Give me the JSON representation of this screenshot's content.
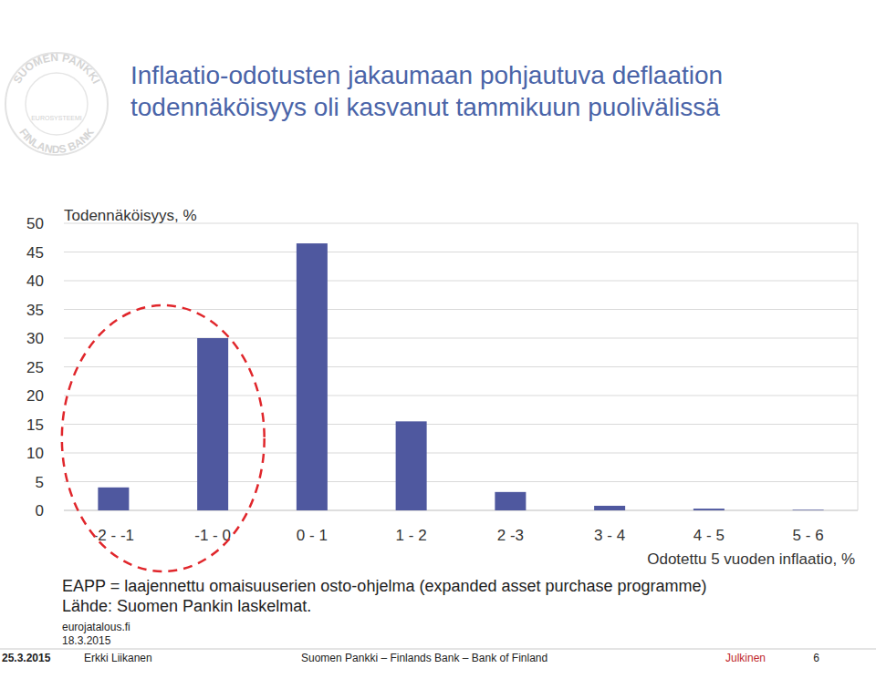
{
  "chart_data": {
    "type": "bar",
    "title": [
      "Inflaatio-odotusten jakaumaan pohjautuva deflaation",
      "todennäköisyys oli kasvanut tammikuun puolivälissä"
    ],
    "y_label": "Todennäköisyys, %",
    "x_label": "Odotettu  5 vuoden inflaatio, %",
    "categories": [
      "-2 - -1",
      "-1 - 0",
      "0 - 1",
      "1 - 2",
      "2 -3",
      "3 - 4",
      "4 - 5",
      "5 - 6"
    ],
    "values": [
      4,
      30,
      46.5,
      15.5,
      3.2,
      0.8,
      0.3,
      0.1
    ],
    "color": "#4f589f",
    "ylim": [
      0,
      50
    ],
    "yticks": [
      0,
      5,
      10,
      15,
      20,
      25,
      30,
      35,
      40,
      45,
      50
    ],
    "grid": true,
    "data_labels": false,
    "notes": [
      "EAPP = laajennettu omaisuuserien osto-ohjelma (expanded asset purchase programme)",
      "Lähde: Suomen Pankin laskelmat."
    ],
    "source_site": "eurojatalous.fi",
    "source_date": "18.3.2015"
  },
  "footer": {
    "date": "25.3.2015",
    "author": "Erkki Liikanen",
    "organisation": "Suomen Pankki – Finlands Bank – Bank of Finland",
    "classification": "Julkinen",
    "page": "6"
  },
  "logo": {
    "top": "SUOMEN PANKKI",
    "bottom": "FINLANDS BANK",
    "center": "EUROSYSTEEMI"
  }
}
